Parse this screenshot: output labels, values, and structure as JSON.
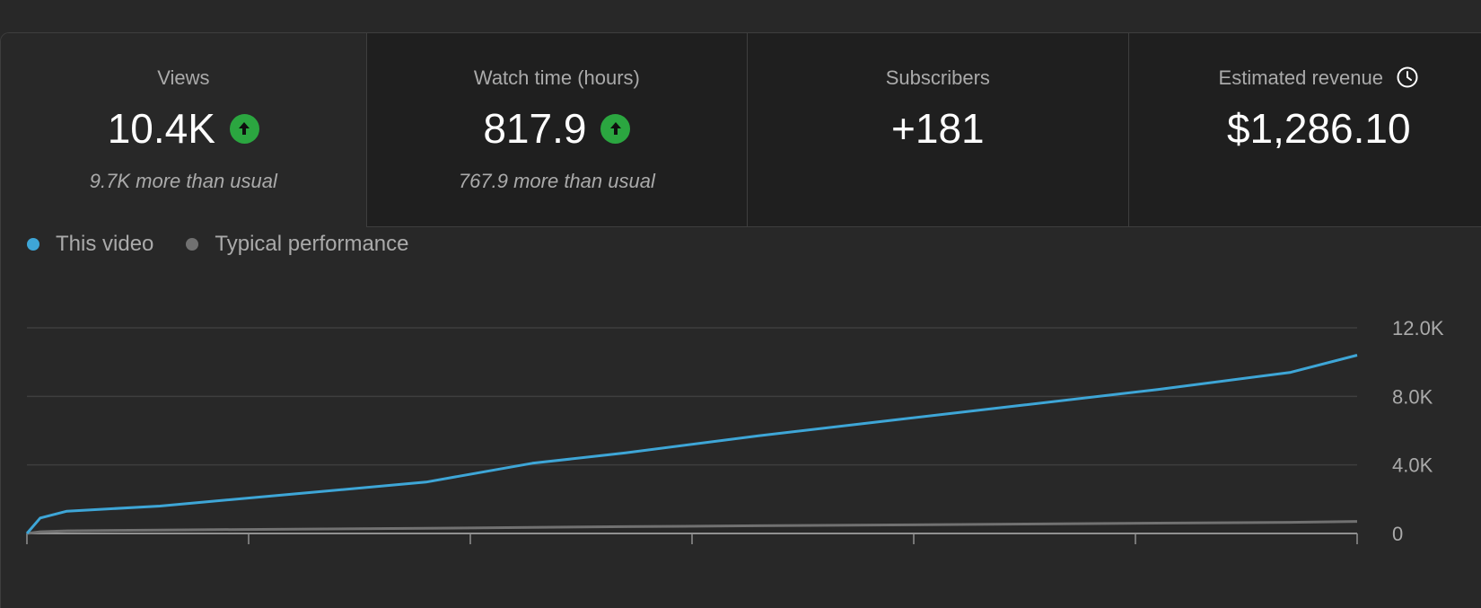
{
  "cards": [
    {
      "label": "Views",
      "value": "10.4K",
      "sub": "9.7K more than usual",
      "trend": "up",
      "selected": true
    },
    {
      "label": "Watch time (hours)",
      "value": "817.9",
      "sub": "767.9 more than usual",
      "trend": "up"
    },
    {
      "label": "Subscribers",
      "value": "+181",
      "sub": ""
    },
    {
      "label": "Estimated revenue",
      "value": "$1,286.10",
      "sub": "",
      "icon": "clock-icon"
    }
  ],
  "legend": [
    {
      "label": "This video",
      "color": "#3ea6d7"
    },
    {
      "label": "Typical performance",
      "color": "#717171"
    }
  ],
  "chart_data": {
    "type": "line",
    "y_ticks": [
      "12.0K",
      "8.0K",
      "4.0K",
      "0"
    ],
    "ylim": [
      0,
      12000
    ],
    "x": [
      0,
      0.01,
      0.03,
      0.1,
      0.2,
      0.3,
      0.38,
      0.45,
      0.55,
      0.65,
      0.75,
      0.85,
      0.95,
      1.0
    ],
    "series": [
      {
        "name": "This video",
        "color": "#3ea6d7",
        "values": [
          0,
          900,
          1300,
          1600,
          2300,
          3000,
          4100,
          4700,
          5700,
          6600,
          7500,
          8400,
          9400,
          10400
        ]
      },
      {
        "name": "Typical performance",
        "color": "#717171",
        "values": [
          0,
          100,
          150,
          200,
          250,
          300,
          350,
          400,
          450,
          500,
          550,
          600,
          650,
          700
        ]
      }
    ]
  }
}
